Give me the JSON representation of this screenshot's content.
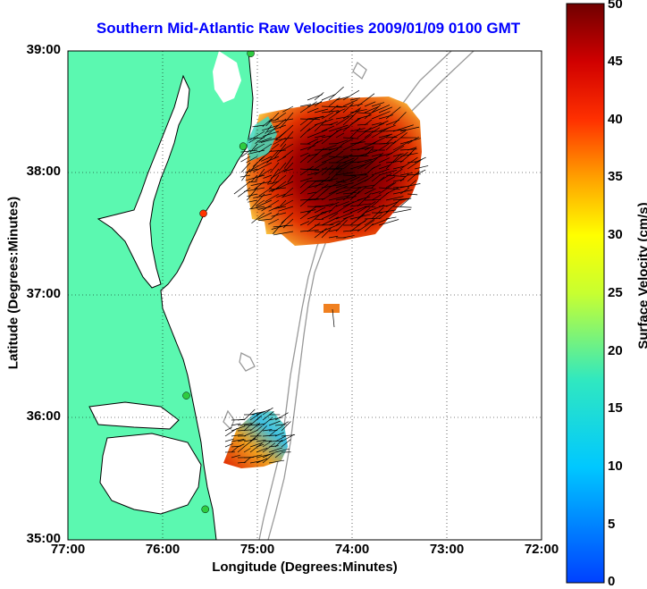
{
  "title": "Southern Mid-Atlantic Raw Velocities 2009/01/09 0100 GMT",
  "xlabel": "Longitude (Degrees:Minutes)",
  "ylabel": "Latitude (Degrees:Minutes)",
  "colorbar": {
    "label": "Surface Velocity (cm/s)",
    "ticks": [
      "0",
      "5",
      "10",
      "15",
      "20",
      "25",
      "30",
      "35",
      "40",
      "45",
      "50"
    ],
    "range": [
      0,
      50
    ]
  },
  "x_ticks": [
    "77:00",
    "76:00",
    "75:00",
    "74:00",
    "73:00",
    "72:00"
  ],
  "y_ticks": [
    "39:00",
    "38:00",
    "37:00",
    "36:00",
    "35:00"
  ],
  "colors": {
    "land": "#5bf8b0",
    "title": "#0000ff",
    "bathymetry": "#999999",
    "grid": "#000000"
  },
  "axes": {
    "lon_range": [
      -77,
      -72
    ],
    "lat_range": [
      35,
      39
    ]
  },
  "stations": [
    {
      "lon": -75.07,
      "lat": 38.98,
      "color": "#2ecc40"
    },
    {
      "lon": -75.15,
      "lat": 38.22,
      "color": "#2ecc40"
    },
    {
      "lon": -75.57,
      "lat": 37.67,
      "color": "#ff3300"
    },
    {
      "lon": -75.75,
      "lat": 36.18,
      "color": "#2ecc40"
    },
    {
      "lon": -75.55,
      "lat": 35.25,
      "color": "#2ecc40"
    }
  ]
}
